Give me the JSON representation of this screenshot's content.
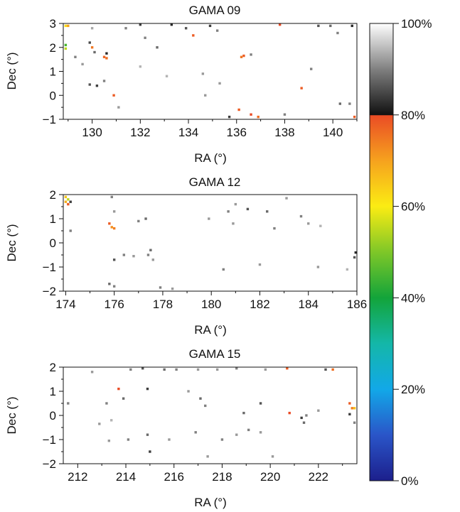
{
  "colorbar": {
    "ticks": [
      "0%",
      "20%",
      "40%",
      "60%",
      "80%",
      "100%"
    ],
    "range": [
      0,
      100
    ],
    "break_at": 80,
    "stops": [
      {
        "v": 0,
        "c": "#1c1f8c"
      },
      {
        "v": 10,
        "c": "#2a55c8"
      },
      {
        "v": 20,
        "c": "#12a8e8"
      },
      {
        "v": 30,
        "c": "#14b7a8"
      },
      {
        "v": 40,
        "c": "#13a43a"
      },
      {
        "v": 50,
        "c": "#7ec728"
      },
      {
        "v": 60,
        "c": "#fbec13"
      },
      {
        "v": 70,
        "c": "#f6a21e"
      },
      {
        "v": 80,
        "c": "#ea4b25"
      },
      {
        "v": 80.01,
        "c": "#111111"
      },
      {
        "v": 90,
        "c": "#808080"
      },
      {
        "v": 100,
        "c": "#ffffff"
      }
    ]
  },
  "chart_data": [
    {
      "type": "heatmap",
      "title": "GAMA 09",
      "xlabel": "RA (°)",
      "ylabel": "Dec (°)",
      "xlim": [
        128.8,
        141.0
      ],
      "ylim": [
        -1,
        3
      ],
      "xticks": [
        "130",
        "132",
        "134",
        "136",
        "138",
        "140"
      ],
      "yticks": [
        "−1",
        "0",
        "1",
        "2",
        "3"
      ],
      "cells": [
        [
          128.9,
          2.9,
          62
        ],
        [
          129.0,
          2.9,
          70
        ],
        [
          128.9,
          2.1,
          45
        ],
        [
          128.9,
          1.95,
          55
        ],
        [
          129.3,
          1.6,
          90
        ],
        [
          129.9,
          2.2,
          85
        ],
        [
          130.0,
          2.0,
          75
        ],
        [
          130.1,
          1.8,
          88
        ],
        [
          130.5,
          1.6,
          77
        ],
        [
          130.6,
          1.55,
          76
        ],
        [
          130.6,
          1.75,
          82
        ],
        [
          129.9,
          0.45,
          86
        ],
        [
          130.2,
          0.4,
          84
        ],
        [
          130.5,
          0.6,
          90
        ],
        [
          130.9,
          0.0,
          78
        ],
        [
          131.1,
          -0.5,
          92
        ],
        [
          130.0,
          2.8,
          93
        ],
        [
          131.4,
          2.8,
          90
        ],
        [
          132.0,
          2.95,
          84
        ],
        [
          132.2,
          2.4,
          90
        ],
        [
          132.7,
          2.0,
          88
        ],
        [
          133.3,
          2.95,
          82
        ],
        [
          133.9,
          2.8,
          86
        ],
        [
          134.2,
          2.5,
          78
        ],
        [
          134.9,
          2.9,
          84
        ],
        [
          135.2,
          2.7,
          90
        ],
        [
          136.2,
          1.6,
          75
        ],
        [
          136.3,
          1.65,
          78
        ],
        [
          136.6,
          1.7,
          90
        ],
        [
          134.6,
          0.9,
          92
        ],
        [
          133.1,
          0.8,
          94
        ],
        [
          135.3,
          0.5,
          92
        ],
        [
          135.7,
          -0.9,
          84
        ],
        [
          136.1,
          -0.6,
          78
        ],
        [
          136.6,
          -0.8,
          80
        ],
        [
          136.9,
          -0.9,
          76
        ],
        [
          138.0,
          -0.8,
          90
        ],
        [
          138.7,
          0.3,
          78
        ],
        [
          139.1,
          1.1,
          90
        ],
        [
          137.8,
          2.95,
          80
        ],
        [
          139.4,
          2.9,
          86
        ],
        [
          139.9,
          2.9,
          88
        ],
        [
          140.2,
          2.6,
          90
        ],
        [
          140.8,
          2.9,
          82
        ],
        [
          140.7,
          -0.35,
          90
        ],
        [
          140.9,
          -0.9,
          78
        ],
        [
          140.3,
          -0.35,
          88
        ],
        [
          129.6,
          1.3,
          92
        ],
        [
          132.0,
          1.2,
          94
        ],
        [
          134.7,
          0.0,
          92
        ]
      ]
    },
    {
      "type": "heatmap",
      "title": "GAMA 12",
      "xlabel": "RA (°)",
      "ylabel": "Dec (°)",
      "xlim": [
        173.9,
        186.0
      ],
      "ylim": [
        -2,
        2
      ],
      "xticks": [
        "174",
        "176",
        "178",
        "180",
        "182",
        "184",
        "186"
      ],
      "yticks": [
        "−2",
        "−1",
        "0",
        "1",
        "2"
      ],
      "cells": [
        [
          174.0,
          1.9,
          65
        ],
        [
          174.1,
          1.8,
          55
        ],
        [
          174.0,
          1.7,
          68
        ],
        [
          174.1,
          1.6,
          78
        ],
        [
          174.2,
          1.7,
          84
        ],
        [
          174.2,
          0.5,
          90
        ],
        [
          175.8,
          0.8,
          78
        ],
        [
          175.9,
          0.65,
          72
        ],
        [
          176.0,
          0.6,
          74
        ],
        [
          175.9,
          1.9,
          90
        ],
        [
          176.0,
          1.3,
          92
        ],
        [
          176.4,
          -0.5,
          90
        ],
        [
          176.0,
          -0.7,
          86
        ],
        [
          175.8,
          -1.7,
          88
        ],
        [
          176.0,
          -1.8,
          90
        ],
        [
          177.0,
          0.9,
          90
        ],
        [
          177.3,
          1.0,
          88
        ],
        [
          177.5,
          -0.3,
          88
        ],
        [
          177.4,
          -0.5,
          90
        ],
        [
          177.6,
          -0.7,
          92
        ],
        [
          176.8,
          -0.55,
          92
        ],
        [
          177.9,
          -1.85,
          90
        ],
        [
          178.4,
          -1.9,
          92
        ],
        [
          180.5,
          -1.1,
          90
        ],
        [
          180.7,
          1.3,
          90
        ],
        [
          180.9,
          0.8,
          92
        ],
        [
          181.0,
          1.6,
          92
        ],
        [
          181.5,
          1.4,
          86
        ],
        [
          182.3,
          1.3,
          88
        ],
        [
          182.6,
          0.6,
          90
        ],
        [
          182.0,
          -0.9,
          92
        ],
        [
          183.1,
          1.85,
          92
        ],
        [
          183.7,
          1.1,
          90
        ],
        [
          184.0,
          0.8,
          92
        ],
        [
          184.5,
          0.7,
          94
        ],
        [
          185.6,
          -1.1,
          94
        ],
        [
          185.9,
          -0.6,
          86
        ],
        [
          186.0,
          -0.4,
          82
        ],
        [
          184.4,
          -1.0,
          92
        ],
        [
          179.9,
          1.0,
          92
        ]
      ]
    },
    {
      "type": "heatmap",
      "title": "GAMA 15",
      "xlabel": "RA (°)",
      "ylabel": "Dec (°)",
      "xlim": [
        211.4,
        223.6
      ],
      "ylim": [
        -2,
        2
      ],
      "xticks": [
        "212",
        "214",
        "216",
        "218",
        "220",
        "222"
      ],
      "yticks": [
        "−2",
        "−1",
        "0",
        "1",
        "2"
      ],
      "cells": [
        [
          211.6,
          0.5,
          90
        ],
        [
          212.6,
          1.8,
          92
        ],
        [
          213.2,
          0.5,
          90
        ],
        [
          213.7,
          1.1,
          80
        ],
        [
          213.9,
          0.7,
          88
        ],
        [
          214.2,
          1.9,
          90
        ],
        [
          214.7,
          1.95,
          86
        ],
        [
          214.9,
          1.1,
          84
        ],
        [
          215.6,
          1.9,
          88
        ],
        [
          216.1,
          1.9,
          90
        ],
        [
          217.0,
          1.9,
          92
        ],
        [
          216.6,
          1.0,
          92
        ],
        [
          217.1,
          0.7,
          88
        ],
        [
          217.3,
          0.4,
          90
        ],
        [
          217.8,
          1.9,
          92
        ],
        [
          218.6,
          1.95,
          90
        ],
        [
          218.9,
          0.1,
          88
        ],
        [
          219.6,
          0.5,
          86
        ],
        [
          219.8,
          1.9,
          92
        ],
        [
          220.7,
          1.95,
          78
        ],
        [
          220.8,
          0.1,
          80
        ],
        [
          221.3,
          -0.1,
          84
        ],
        [
          221.4,
          -0.3,
          88
        ],
        [
          221.5,
          0.0,
          90
        ],
        [
          222.0,
          0.2,
          92
        ],
        [
          222.6,
          1.9,
          76
        ],
        [
          222.3,
          1.9,
          86
        ],
        [
          223.3,
          0.5,
          78
        ],
        [
          223.4,
          0.3,
          74
        ],
        [
          223.5,
          0.3,
          66
        ],
        [
          223.3,
          0.05,
          84
        ],
        [
          223.5,
          -0.3,
          90
        ],
        [
          212.9,
          -0.35,
          92
        ],
        [
          213.3,
          -1.05,
          92
        ],
        [
          214.1,
          -1.0,
          90
        ],
        [
          214.9,
          -0.8,
          88
        ],
        [
          215.0,
          -1.5,
          84
        ],
        [
          215.8,
          -1.0,
          92
        ],
        [
          216.9,
          -0.7,
          90
        ],
        [
          217.4,
          -1.7,
          92
        ],
        [
          218.0,
          -1.0,
          90
        ],
        [
          218.6,
          -0.8,
          92
        ],
        [
          219.1,
          -0.6,
          90
        ],
        [
          219.6,
          -0.7,
          92
        ],
        [
          220.1,
          -1.7,
          92
        ],
        [
          213.4,
          -0.2,
          94
        ]
      ]
    }
  ]
}
